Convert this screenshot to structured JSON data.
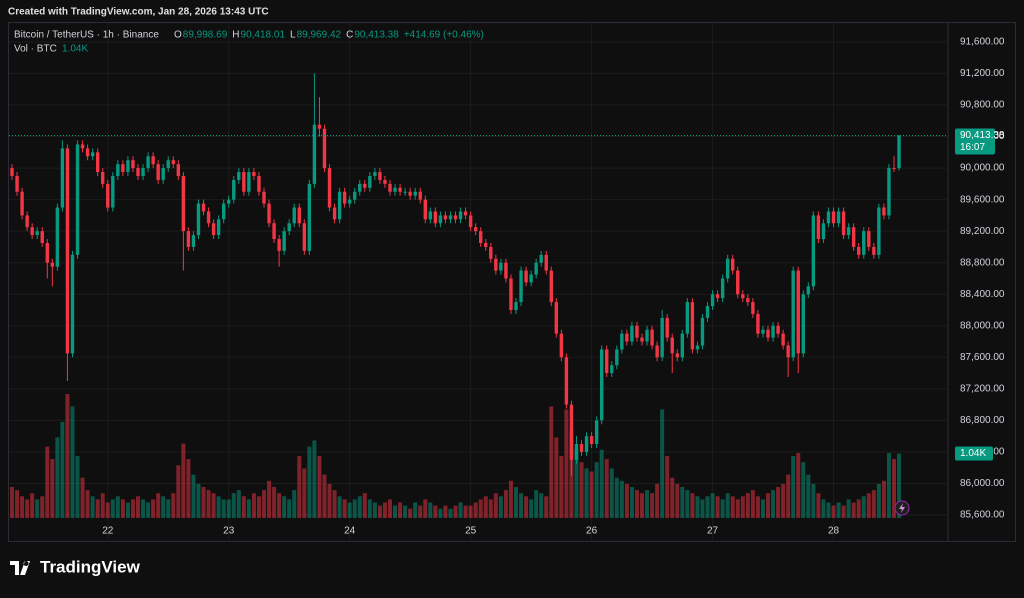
{
  "chart_data": {
    "type": "candlestick",
    "header": "Created with TradingView.com, Jan 28, 2026 13:43 UTC",
    "symbol": "Bitcoin / TetherUS · 1h · Binance",
    "legend": [
      {
        "key": "O",
        "value": "89,998.69"
      },
      {
        "key": "H",
        "value": "90,418.01"
      },
      {
        "key": "L",
        "value": "89,969.42"
      },
      {
        "key": "C",
        "value": "90,413.38"
      }
    ],
    "change": "+414.69 (+0.46%)",
    "volume_title": "Vol · BTC",
    "volume_value": "1.04K",
    "last_price_label": "90,413.38",
    "countdown": "16:07",
    "volume_tag": "1.04K",
    "logo": "TradingView",
    "up_color": "#089981",
    "down_color": "#f23645",
    "ylim": [
      85270,
      91815
    ],
    "yticks": [
      {
        "value": 85600,
        "label": "85,600.00"
      },
      {
        "value": 86000,
        "label": "86,000.00"
      },
      {
        "value": 86400,
        "label": "86,400.00"
      },
      {
        "value": 86800,
        "label": "86,800.00"
      },
      {
        "value": 87200,
        "label": "87,200.00"
      },
      {
        "value": 87600,
        "label": "87,600.00"
      },
      {
        "value": 88000,
        "label": "88,000.00"
      },
      {
        "value": 88400,
        "label": "88,400.00"
      },
      {
        "value": 88800,
        "label": "88,800.00"
      },
      {
        "value": 89200,
        "label": "89,200.00"
      },
      {
        "value": 89600,
        "label": "89,600.00"
      },
      {
        "value": 90000,
        "label": "90,000.00"
      },
      {
        "value": 90400,
        "label": "90,400.00"
      },
      {
        "value": 90800,
        "label": "90,800.00"
      },
      {
        "value": 91200,
        "label": "91,200.00"
      },
      {
        "value": 91600,
        "label": "91,600.00"
      }
    ],
    "xticks": [
      {
        "value": 19,
        "label": "22"
      },
      {
        "value": 43,
        "label": "23"
      },
      {
        "value": 67,
        "label": "24"
      },
      {
        "value": 91,
        "label": "25"
      },
      {
        "value": 115,
        "label": "26"
      },
      {
        "value": 139,
        "label": "27"
      },
      {
        "value": 163,
        "label": "28"
      }
    ],
    "grid": true,
    "volume_ylim": [
      0,
      4000
    ],
    "candles": [
      [
        90000,
        90050,
        89850,
        89900
      ],
      [
        89900,
        89950,
        89650,
        89700
      ],
      [
        89700,
        89750,
        89350,
        89400
      ],
      [
        89400,
        89450,
        89200,
        89250
      ],
      [
        89250,
        89300,
        89100,
        89150
      ],
      [
        89150,
        89250,
        89100,
        89200
      ],
      [
        89200,
        89250,
        89000,
        89050
      ],
      [
        89050,
        89100,
        88600,
        88800
      ],
      [
        88800,
        88850,
        88500,
        88750
      ],
      [
        88750,
        89550,
        88700,
        89500
      ],
      [
        89500,
        90350,
        89450,
        90250
      ],
      [
        90250,
        90300,
        87300,
        87650
      ],
      [
        87650,
        88950,
        87600,
        88900
      ],
      [
        88900,
        90350,
        88850,
        90300
      ],
      [
        90300,
        90350,
        90200,
        90250
      ],
      [
        90250,
        90300,
        90100,
        90150
      ],
      [
        90150,
        90250,
        90100,
        90200
      ],
      [
        90200,
        90250,
        89900,
        89950
      ],
      [
        89950,
        90000,
        89750,
        89800
      ],
      [
        89800,
        89850,
        89450,
        89500
      ],
      [
        89500,
        89950,
        89450,
        89900
      ],
      [
        89900,
        90100,
        89850,
        90050
      ],
      [
        90050,
        90100,
        89900,
        89950
      ],
      [
        89950,
        90150,
        89900,
        90100
      ],
      [
        90100,
        90150,
        89950,
        90000
      ],
      [
        90000,
        90050,
        89850,
        89900
      ],
      [
        89900,
        90050,
        89850,
        90000
      ],
      [
        90000,
        90200,
        89950,
        90150
      ],
      [
        90150,
        90200,
        90000,
        90050
      ],
      [
        90050,
        90100,
        89800,
        89850
      ],
      [
        89850,
        90050,
        89800,
        90000
      ],
      [
        90000,
        90150,
        89950,
        90100
      ],
      [
        90100,
        90150,
        90000,
        90050
      ],
      [
        90050,
        90100,
        89850,
        89900
      ],
      [
        89900,
        89950,
        88700,
        89200
      ],
      [
        89200,
        89250,
        88950,
        89000
      ],
      [
        89000,
        89200,
        88950,
        89150
      ],
      [
        89150,
        89600,
        89100,
        89550
      ],
      [
        89550,
        89600,
        89400,
        89450
      ],
      [
        89450,
        89500,
        89250,
        89300
      ],
      [
        89300,
        89350,
        89100,
        89150
      ],
      [
        89150,
        89400,
        89100,
        89350
      ],
      [
        89350,
        89600,
        89300,
        89550
      ],
      [
        89550,
        89650,
        89500,
        89600
      ],
      [
        89600,
        89900,
        89550,
        89850
      ],
      [
        89850,
        90000,
        89800,
        89950
      ],
      [
        89950,
        90000,
        89650,
        89700
      ],
      [
        89700,
        90000,
        89650,
        89950
      ],
      [
        89950,
        90000,
        89850,
        89900
      ],
      [
        89900,
        89950,
        89650,
        89700
      ],
      [
        89700,
        89750,
        89500,
        89550
      ],
      [
        89550,
        89600,
        89250,
        89300
      ],
      [
        89300,
        89350,
        89050,
        89100
      ],
      [
        89100,
        89150,
        88750,
        88950
      ],
      [
        88950,
        89250,
        88900,
        89200
      ],
      [
        89200,
        89350,
        89150,
        89300
      ],
      [
        89300,
        89550,
        89250,
        89500
      ],
      [
        89500,
        89550,
        89250,
        89300
      ],
      [
        89300,
        89350,
        88900,
        88950
      ],
      [
        88950,
        89850,
        88900,
        89800
      ],
      [
        89800,
        91200,
        89750,
        90550
      ],
      [
        90550,
        90900,
        90400,
        90500
      ],
      [
        90500,
        90550,
        89950,
        90000
      ],
      [
        90000,
        90050,
        89450,
        89500
      ],
      [
        89500,
        89550,
        89300,
        89350
      ],
      [
        89350,
        89750,
        89300,
        89700
      ],
      [
        89700,
        89750,
        89500,
        89550
      ],
      [
        89550,
        89650,
        89500,
        89600
      ],
      [
        89600,
        89750,
        89550,
        89700
      ],
      [
        89700,
        89850,
        89650,
        89800
      ],
      [
        89800,
        89850,
        89700,
        89750
      ],
      [
        89750,
        89950,
        89700,
        89900
      ],
      [
        89900,
        90000,
        89850,
        89950
      ],
      [
        89950,
        90000,
        89800,
        89850
      ],
      [
        89850,
        89900,
        89750,
        89800
      ],
      [
        89800,
        89850,
        89650,
        89700
      ],
      [
        89700,
        89800,
        89650,
        89750
      ],
      [
        89750,
        89800,
        89650,
        89700
      ],
      [
        89700,
        89750,
        89650,
        89700
      ],
      [
        89700,
        89750,
        89600,
        89650
      ],
      [
        89650,
        89750,
        89600,
        89700
      ],
      [
        89700,
        89750,
        89550,
        89600
      ],
      [
        89600,
        89650,
        89300,
        89350
      ],
      [
        89350,
        89500,
        89300,
        89450
      ],
      [
        89450,
        89500,
        89250,
        89300
      ],
      [
        89300,
        89450,
        89250,
        89400
      ],
      [
        89400,
        89450,
        89300,
        89350
      ],
      [
        89350,
        89450,
        89300,
        89400
      ],
      [
        89400,
        89450,
        89300,
        89350
      ],
      [
        89350,
        89500,
        89300,
        89450
      ],
      [
        89450,
        89500,
        89350,
        89400
      ],
      [
        89400,
        89450,
        89200,
        89250
      ],
      [
        89250,
        89300,
        89150,
        89200
      ],
      [
        89200,
        89250,
        89000,
        89050
      ],
      [
        89050,
        89100,
        88950,
        89000
      ],
      [
        89000,
        89050,
        88800,
        88850
      ],
      [
        88850,
        88900,
        88650,
        88700
      ],
      [
        88700,
        88850,
        88650,
        88800
      ],
      [
        88800,
        88850,
        88550,
        88600
      ],
      [
        88600,
        88650,
        88150,
        88200
      ],
      [
        88200,
        88350,
        88150,
        88300
      ],
      [
        88300,
        88750,
        88250,
        88700
      ],
      [
        88700,
        88750,
        88500,
        88550
      ],
      [
        88550,
        88700,
        88500,
        88650
      ],
      [
        88650,
        88850,
        88600,
        88800
      ],
      [
        88800,
        88950,
        88750,
        88900
      ],
      [
        88900,
        88950,
        88650,
        88700
      ],
      [
        88700,
        88750,
        88250,
        88300
      ],
      [
        88300,
        88350,
        87850,
        87900
      ],
      [
        87900,
        87950,
        87550,
        87600
      ],
      [
        87600,
        87650,
        86950,
        87000
      ],
      [
        87000,
        87050,
        86100,
        86300
      ],
      [
        86300,
        86600,
        86250,
        86500
      ],
      [
        86500,
        86550,
        86350,
        86400
      ],
      [
        86400,
        86650,
        86350,
        86600
      ],
      [
        86600,
        86650,
        86450,
        86500
      ],
      [
        86500,
        86850,
        86450,
        86800
      ],
      [
        86800,
        87750,
        86750,
        87700
      ],
      [
        87700,
        87750,
        87350,
        87400
      ],
      [
        87400,
        87550,
        87350,
        87500
      ],
      [
        87500,
        87750,
        87450,
        87700
      ],
      [
        87700,
        87950,
        87650,
        87900
      ],
      [
        87900,
        87950,
        87750,
        87800
      ],
      [
        87800,
        88050,
        87750,
        88000
      ],
      [
        88000,
        88050,
        87800,
        87850
      ],
      [
        87850,
        87900,
        87750,
        87800
      ],
      [
        87800,
        88000,
        87750,
        87950
      ],
      [
        87950,
        88000,
        87700,
        87750
      ],
      [
        87750,
        87800,
        87550,
        87600
      ],
      [
        87600,
        88200,
        87550,
        88100
      ],
      [
        88100,
        88150,
        87800,
        87850
      ],
      [
        87850,
        87900,
        87400,
        87650
      ],
      [
        87650,
        87700,
        87550,
        87600
      ],
      [
        87600,
        87950,
        87550,
        87900
      ],
      [
        87900,
        88350,
        87850,
        88300
      ],
      [
        88300,
        88350,
        87650,
        87700
      ],
      [
        87700,
        87800,
        87650,
        87750
      ],
      [
        87750,
        88150,
        87700,
        88100
      ],
      [
        88100,
        88300,
        88050,
        88250
      ],
      [
        88250,
        88450,
        88200,
        88400
      ],
      [
        88400,
        88450,
        88300,
        88350
      ],
      [
        88350,
        88650,
        88300,
        88600
      ],
      [
        88600,
        88900,
        88550,
        88850
      ],
      [
        88850,
        88900,
        88650,
        88700
      ],
      [
        88700,
        88750,
        88350,
        88400
      ],
      [
        88400,
        88450,
        88300,
        88350
      ],
      [
        88350,
        88400,
        88250,
        88300
      ],
      [
        88300,
        88350,
        88100,
        88150
      ],
      [
        88150,
        88200,
        87850,
        87900
      ],
      [
        87900,
        88000,
        87850,
        87950
      ],
      [
        87950,
        88000,
        87800,
        87850
      ],
      [
        87850,
        88050,
        87800,
        88000
      ],
      [
        88000,
        88050,
        87850,
        87900
      ],
      [
        87900,
        87950,
        87700,
        87750
      ],
      [
        87750,
        87800,
        87350,
        87600
      ],
      [
        87600,
        88750,
        87550,
        88700
      ],
      [
        88700,
        88750,
        87400,
        87650
      ],
      [
        87650,
        88450,
        87600,
        88400
      ],
      [
        88400,
        88550,
        88350,
        88500
      ],
      [
        88500,
        89450,
        88450,
        89400
      ],
      [
        89400,
        89450,
        89050,
        89100
      ],
      [
        89100,
        89350,
        89050,
        89300
      ],
      [
        89300,
        89500,
        89250,
        89450
      ],
      [
        89450,
        89500,
        89250,
        89300
      ],
      [
        89300,
        89500,
        89250,
        89450
      ],
      [
        89450,
        89500,
        89100,
        89150
      ],
      [
        89150,
        89300,
        89100,
        89250
      ],
      [
        89250,
        89300,
        88950,
        89000
      ],
      [
        89000,
        89050,
        88850,
        88900
      ],
      [
        88900,
        89250,
        88850,
        89200
      ],
      [
        89200,
        89250,
        88950,
        89000
      ],
      [
        89000,
        89050,
        88850,
        88900
      ],
      [
        88900,
        89550,
        88850,
        89500
      ],
      [
        89500,
        89550,
        89350,
        89400
      ],
      [
        89400,
        90050,
        89350,
        90000
      ],
      [
        90000,
        90150,
        89950,
        89998.69
      ],
      [
        89998.69,
        90418.01,
        89969.42,
        90413.38
      ]
    ],
    "volumes": [
      500,
      450,
      350,
      300,
      400,
      300,
      350,
      1150,
      950,
      1300,
      1550,
      2000,
      1800,
      1000,
      650,
      450,
      350,
      300,
      400,
      250,
      300,
      350,
      300,
      250,
      300,
      350,
      300,
      250,
      300,
      400,
      350,
      300,
      400,
      850,
      1200,
      950,
      700,
      550,
      500,
      450,
      400,
      350,
      300,
      300,
      400,
      450,
      350,
      300,
      400,
      350,
      450,
      600,
      500,
      400,
      350,
      300,
      450,
      1000,
      800,
      1150,
      1250,
      1000,
      700,
      550,
      450,
      350,
      300,
      250,
      300,
      350,
      400,
      300,
      250,
      200,
      250,
      300,
      200,
      250,
      200,
      150,
      250,
      200,
      300,
      250,
      200,
      150,
      200,
      150,
      200,
      250,
      200,
      200,
      250,
      300,
      350,
      300,
      400,
      350,
      450,
      600,
      500,
      400,
      350,
      300,
      450,
      400,
      350,
      1800,
      1300,
      1000,
      1750,
      1400,
      1100,
      900,
      800,
      750,
      900,
      1100,
      950,
      800,
      650,
      600,
      550,
      500,
      450,
      400,
      450,
      400,
      550,
      1750,
      1000,
      650,
      550,
      500,
      450,
      400,
      350,
      300,
      350,
      400,
      350,
      300,
      400,
      350,
      300,
      350,
      400,
      450,
      350,
      300,
      400,
      450,
      500,
      550,
      700,
      1000,
      1050,
      900,
      700,
      550,
      400,
      300,
      250,
      200,
      250,
      200,
      300,
      250,
      300,
      350,
      400,
      450,
      550,
      600,
      1050,
      950,
      1040
    ]
  }
}
